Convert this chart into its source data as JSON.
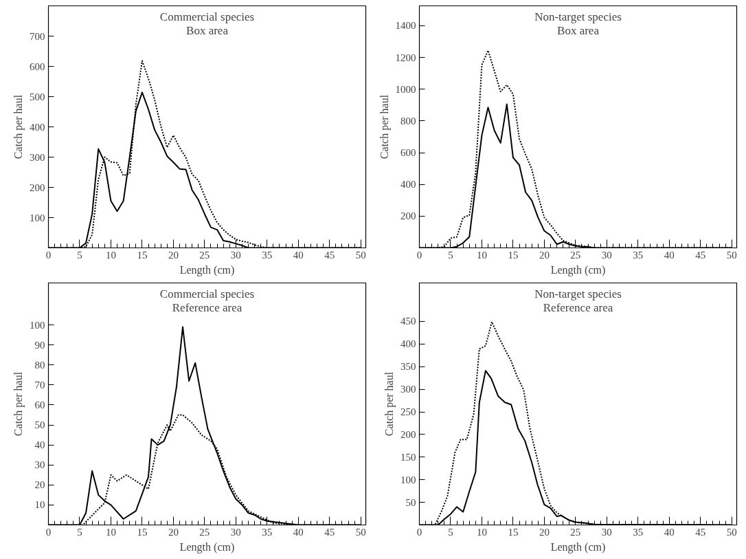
{
  "chart_data": [
    {
      "type": "line",
      "title": "Commercial species",
      "subtitle": "Box area",
      "xlabel": "Length (cm)",
      "ylabel": "Catch per haul",
      "xlim": [
        0,
        50.8
      ],
      "ylim": [
        0,
        800
      ],
      "xticks": [
        0,
        5,
        10,
        15,
        20,
        25,
        30,
        35,
        40,
        45,
        50
      ],
      "yticks": [
        100,
        200,
        300,
        400,
        500,
        600,
        700
      ],
      "series": [
        {
          "color": "#000000",
          "line_style": "solid",
          "x": [
            0,
            5,
            6,
            7,
            8,
            9,
            10,
            11,
            12,
            13,
            14,
            15,
            16,
            17,
            18,
            19,
            20,
            21,
            22,
            23,
            24,
            25,
            26,
            27,
            28,
            29,
            30,
            31,
            32,
            50
          ],
          "values": [
            0,
            0,
            16,
            112,
            327,
            283,
            155,
            121,
            155,
            300,
            452,
            514,
            458,
            390,
            350,
            303,
            283,
            261,
            259,
            191,
            159,
            112,
            68,
            60,
            24,
            20,
            14,
            8,
            0,
            0
          ]
        },
        {
          "color": "#000000",
          "line_style": "dashed",
          "x": [
            0,
            5,
            6,
            7,
            8,
            9,
            10,
            11,
            12,
            13,
            14,
            15,
            16,
            17,
            18,
            19,
            20,
            21,
            22,
            23,
            24,
            25,
            26,
            27,
            28,
            29,
            30,
            31,
            32,
            33,
            34,
            35,
            50
          ],
          "values": [
            0,
            0,
            4,
            44,
            227,
            300,
            284,
            281,
            239,
            247,
            474,
            618,
            560,
            490,
            402,
            332,
            372,
            331,
            299,
            243,
            223,
            171,
            124,
            84,
            60,
            42,
            28,
            22,
            18,
            10,
            4,
            0,
            0
          ]
        }
      ]
    },
    {
      "type": "line",
      "title": "Non-target species",
      "subtitle": "Box area",
      "xlabel": "Length (cm)",
      "ylabel": "Catch per haul",
      "xlim": [
        0,
        50.8
      ],
      "ylim": [
        0,
        1525
      ],
      "xticks": [
        0,
        5,
        10,
        15,
        20,
        25,
        30,
        35,
        40,
        45,
        50
      ],
      "yticks": [
        200,
        400,
        600,
        800,
        1000,
        1200,
        1400
      ],
      "series": [
        {
          "color": "#000000",
          "line_style": "solid",
          "x": [
            0,
            5,
            6,
            7,
            8,
            9,
            10,
            11,
            12,
            13,
            14,
            15,
            16,
            17,
            18,
            19,
            20,
            21,
            22,
            23,
            24,
            25,
            26,
            27,
            28,
            50
          ],
          "values": [
            0,
            0,
            8,
            31,
            69,
            390,
            710,
            885,
            740,
            661,
            905,
            569,
            522,
            351,
            298,
            191,
            107,
            79,
            23,
            38,
            23,
            12,
            8,
            5,
            0,
            0
          ]
        },
        {
          "color": "#000000",
          "line_style": "dashed",
          "x": [
            0,
            3,
            4,
            5,
            6,
            7,
            8,
            9,
            10,
            11,
            12,
            13,
            14,
            15,
            16,
            17,
            18,
            19,
            20,
            21,
            22,
            23,
            24,
            25,
            26,
            27,
            28,
            50
          ],
          "values": [
            0,
            0,
            8,
            61,
            69,
            191,
            206,
            473,
            1153,
            1244,
            1115,
            985,
            1027,
            969,
            687,
            588,
            496,
            328,
            191,
            145,
            92,
            46,
            31,
            15,
            12,
            8,
            0,
            0
          ]
        }
      ]
    },
    {
      "type": "line",
      "title": "Commercial species",
      "subtitle": "Reference area",
      "xlabel": "Length (cm)",
      "ylabel": "Catch per haul",
      "xlim": [
        0,
        50.8
      ],
      "ylim": [
        0,
        121
      ],
      "xticks": [
        0,
        5,
        10,
        15,
        20,
        25,
        30,
        35,
        40,
        45,
        50
      ],
      "yticks": [
        10,
        20,
        30,
        40,
        50,
        60,
        70,
        80,
        90,
        100
      ],
      "series": [
        {
          "color": "#000000",
          "line_style": "solid",
          "x": [
            0,
            5,
            6,
            7,
            8,
            9,
            10,
            12,
            14,
            16,
            16.5,
            17.5,
            18.5,
            19.5,
            20.5,
            21.5,
            22.5,
            23.5,
            24.5,
            25.5,
            27,
            28,
            29,
            30,
            31,
            32,
            33,
            34,
            35,
            40,
            50
          ],
          "values": [
            0,
            0,
            6,
            27,
            15,
            12,
            10,
            3,
            7,
            24,
            43,
            40,
            42,
            50,
            69,
            99,
            72,
            81,
            64,
            48,
            36,
            27,
            19,
            13,
            10,
            6,
            5,
            3,
            2,
            0,
            0
          ]
        },
        {
          "color": "#000000",
          "line_style": "dashed",
          "x": [
            0,
            5.5,
            8,
            9,
            10,
            11,
            12.5,
            13.5,
            15,
            16,
            17.5,
            19,
            19.5,
            20.8,
            21.5,
            23,
            24.5,
            26,
            27,
            28.5,
            30,
            32,
            34,
            36,
            40,
            50
          ],
          "values": [
            0,
            0,
            8,
            11,
            25,
            22,
            25,
            23,
            20,
            18,
            41,
            50,
            47,
            55,
            55,
            51,
            45,
            42,
            38,
            24,
            15,
            7,
            4,
            1,
            0,
            0
          ]
        }
      ]
    },
    {
      "type": "line",
      "title": "Non-target species",
      "subtitle": "Reference area",
      "xlabel": "Length (cm)",
      "ylabel": "Catch per haul",
      "xlim": [
        0,
        50.8
      ],
      "ylim": [
        0,
        535
      ],
      "xticks": [
        0,
        5,
        10,
        15,
        20,
        25,
        30,
        35,
        40,
        45,
        50
      ],
      "yticks": [
        50,
        100,
        150,
        200,
        250,
        300,
        350,
        400,
        450
      ],
      "series": [
        {
          "color": "#000000",
          "line_style": "solid",
          "x": [
            0,
            3,
            4,
            5,
            6,
            7,
            8,
            9,
            9.6,
            10.6,
            11.5,
            12.6,
            13.7,
            14.7,
            15.8,
            16.9,
            18,
            18.9,
            20,
            21,
            22,
            22.7,
            23.9,
            25,
            26.2,
            28,
            50
          ],
          "values": [
            0,
            0,
            13,
            24,
            40,
            29,
            74,
            117,
            271,
            341,
            324,
            285,
            271,
            266,
            213,
            186,
            138,
            90,
            45,
            37,
            19,
            21,
            11,
            6,
            5,
            1,
            0
          ]
        },
        {
          "color": "#000000",
          "line_style": "dashed",
          "x": [
            0,
            2.5,
            3.6,
            4.5,
            5.7,
            6.6,
            7.6,
            8.7,
            9.6,
            10.6,
            11.6,
            12.6,
            13.7,
            14.7,
            15.6,
            16.7,
            17.7,
            18.9,
            20,
            21,
            22,
            22.9,
            23.9,
            24.8,
            26.2,
            28,
            50
          ],
          "values": [
            0,
            0,
            32,
            64,
            160,
            189,
            189,
            245,
            389,
            396,
            449,
            418,
            388,
            362,
            330,
            298,
            213,
            144,
            80,
            43,
            27,
            19,
            11,
            7,
            4,
            1,
            0
          ]
        }
      ]
    }
  ]
}
